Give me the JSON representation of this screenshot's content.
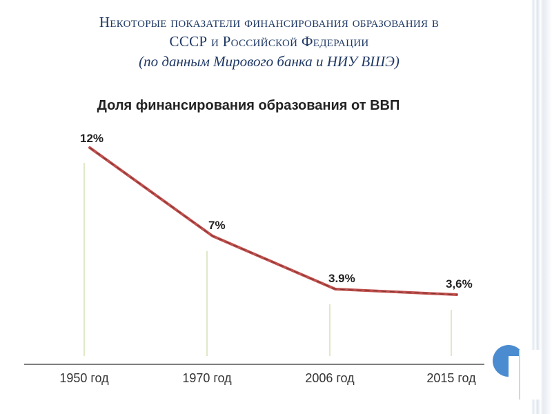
{
  "slide": {
    "title_line1": "Некоторые показатели финансирования образования в",
    "title_line2": "СССР и Российской Федерации",
    "subtitle": "(по данным Мирового банка и НИУ ВШЭ)"
  },
  "colors": {
    "title": "#1f3864",
    "line": "#c0504d",
    "dash": "#7f3332",
    "leader": "#c9d8a4",
    "axis": "#555555",
    "badge": "#4a8ccf"
  },
  "chart_data": {
    "type": "line",
    "title": "Доля финансирования образования от ВВП",
    "categories": [
      "1950 год",
      "1970 год",
      "2006 год",
      "2015 год"
    ],
    "values": [
      12,
      7,
      3.9,
      3.6
    ],
    "data_labels": [
      "12%",
      "7%",
      "3.9%",
      "3,6%"
    ],
    "ylim": [
      0,
      14
    ],
    "grid": false,
    "legend": "none"
  }
}
